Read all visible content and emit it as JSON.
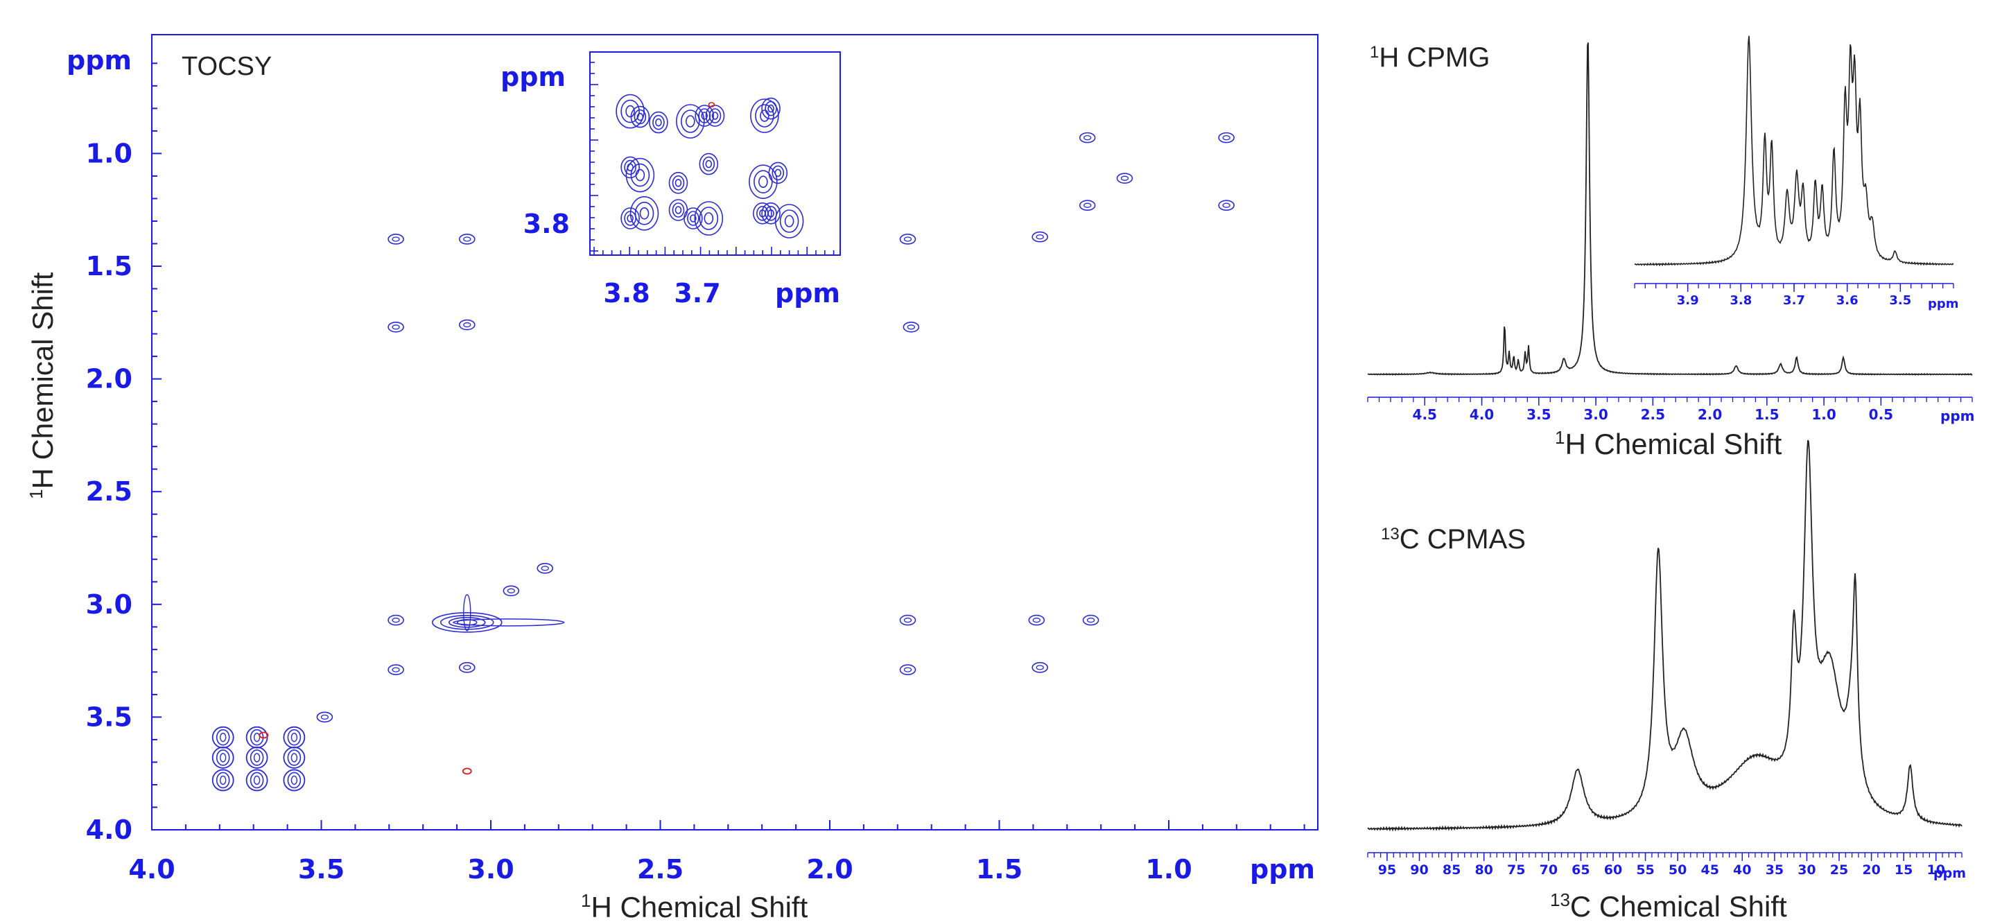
{
  "colors": {
    "axis": "#1a1ae6",
    "contour": "#2b2bd6",
    "contour_negative": "#e01818",
    "trace": "#222222"
  },
  "chart_data": [
    {
      "type": "contour",
      "title": "TOCSY",
      "xlabel_main": "H Chemical Shift",
      "xlabel_sup": "1",
      "ylabel_main": "H Chemical Shift",
      "ylabel_sup": "1",
      "unit": "ppm",
      "xlim": [
        4.0,
        0.55
      ],
      "ylim": [
        4.0,
        0.55
      ],
      "xticks": [
        "4.0",
        "3.5",
        "3.0",
        "2.5",
        "2.0",
        "1.5",
        "1.0"
      ],
      "yticks": [
        "1.0",
        "1.5",
        "2.0",
        "2.5",
        "3.0",
        "3.5",
        "4.0"
      ],
      "peaks": [
        [
          3.07,
          3.08,
          "s"
        ],
        [
          3.28,
          3.07,
          "p"
        ],
        [
          3.28,
          3.29,
          "p"
        ],
        [
          3.07,
          3.28,
          "p"
        ],
        [
          1.77,
          3.07,
          "p"
        ],
        [
          1.77,
          3.29,
          "p"
        ],
        [
          1.39,
          3.07,
          "p"
        ],
        [
          1.38,
          3.28,
          "p"
        ],
        [
          3.28,
          1.38,
          "p"
        ],
        [
          3.07,
          1.38,
          "p"
        ],
        [
          3.28,
          1.77,
          "p"
        ],
        [
          3.07,
          1.76,
          "p"
        ],
        [
          1.77,
          1.38,
          "p"
        ],
        [
          1.76,
          1.77,
          "p"
        ],
        [
          1.38,
          1.37,
          "p"
        ],
        [
          1.24,
          0.93,
          "p"
        ],
        [
          1.24,
          1.23,
          "p"
        ],
        [
          0.83,
          0.93,
          "p"
        ],
        [
          0.83,
          1.23,
          "p"
        ],
        [
          1.13,
          1.11,
          "p"
        ],
        [
          1.23,
          3.07,
          "p"
        ],
        [
          3.49,
          3.5,
          "p"
        ],
        [
          2.84,
          2.84,
          "p"
        ],
        [
          2.94,
          2.94,
          "p"
        ],
        [
          3.79,
          3.59,
          "c"
        ],
        [
          3.79,
          3.68,
          "c"
        ],
        [
          3.79,
          3.78,
          "c"
        ],
        [
          3.69,
          3.59,
          "c"
        ],
        [
          3.69,
          3.68,
          "c"
        ],
        [
          3.69,
          3.78,
          "c"
        ],
        [
          3.58,
          3.59,
          "c"
        ],
        [
          3.58,
          3.68,
          "c"
        ],
        [
          3.58,
          3.78,
          "c"
        ],
        [
          3.07,
          3.74,
          "n"
        ],
        [
          3.67,
          3.58,
          "n"
        ]
      ]
    },
    {
      "type": "contour-inset",
      "unit": "ppm",
      "xlim": [
        3.83,
        3.55
      ],
      "ylim": [
        3.83,
        3.55
      ],
      "xticks": [
        "3.8",
        "3.7"
      ],
      "yticks": [
        "3.8"
      ],
      "peaks": [
        [
          3.795,
          3.597
        ],
        [
          3.781,
          3.607
        ],
        [
          3.755,
          3.617
        ],
        [
          3.71,
          3.615
        ],
        [
          3.69,
          3.605
        ],
        [
          3.675,
          3.605
        ],
        [
          3.605,
          3.605
        ],
        [
          3.596,
          3.592
        ],
        [
          3.795,
          3.698
        ],
        [
          3.781,
          3.712
        ],
        [
          3.727,
          3.726
        ],
        [
          3.684,
          3.692
        ],
        [
          3.607,
          3.724
        ],
        [
          3.586,
          3.708
        ],
        [
          3.795,
          3.79
        ],
        [
          3.775,
          3.781
        ],
        [
          3.727,
          3.775
        ],
        [
          3.706,
          3.79
        ],
        [
          3.684,
          3.79
        ],
        [
          3.608,
          3.781
        ],
        [
          3.596,
          3.781
        ],
        [
          3.57,
          3.795
        ]
      ]
    },
    {
      "type": "line",
      "title_sup": "1",
      "title_main": "H CPMG",
      "xlabel_sup": "1",
      "xlabel_main": "H Chemical Shift",
      "unit": "ppm",
      "xlim": [
        5.0,
        -0.3
      ],
      "xticks": [
        "4.5",
        "4.0",
        "3.5",
        "3.0",
        "2.5",
        "2.0",
        "1.5",
        "1.0",
        "0.5"
      ],
      "peaks": [
        {
          "x": 3.07,
          "h": 1.0,
          "w": 0.018
        },
        {
          "x": 3.8,
          "h": 0.15,
          "w": 0.008
        },
        {
          "x": 3.76,
          "h": 0.06,
          "w": 0.008
        },
        {
          "x": 3.72,
          "h": 0.05,
          "w": 0.008
        },
        {
          "x": 3.68,
          "h": 0.04,
          "w": 0.008
        },
        {
          "x": 3.62,
          "h": 0.06,
          "w": 0.008
        },
        {
          "x": 3.59,
          "h": 0.08,
          "w": 0.008
        },
        {
          "x": 3.28,
          "h": 0.04,
          "w": 0.02
        },
        {
          "x": 1.77,
          "h": 0.025,
          "w": 0.02
        },
        {
          "x": 1.38,
          "h": 0.03,
          "w": 0.02
        },
        {
          "x": 1.24,
          "h": 0.05,
          "w": 0.015
        },
        {
          "x": 0.83,
          "h": 0.05,
          "w": 0.015
        },
        {
          "x": 4.45,
          "h": 0.005,
          "w": 0.05
        }
      ],
      "inset": {
        "xlim": [
          4.0,
          3.4
        ],
        "xticks": [
          "3.9",
          "3.8",
          "3.7",
          "3.6",
          "3.5"
        ],
        "peaks": [
          {
            "x": 3.785,
            "h": 1.0,
            "w": 0.006
          },
          {
            "x": 3.755,
            "h": 0.5,
            "w": 0.004
          },
          {
            "x": 3.742,
            "h": 0.48,
            "w": 0.004
          },
          {
            "x": 3.713,
            "h": 0.28,
            "w": 0.005
          },
          {
            "x": 3.695,
            "h": 0.35,
            "w": 0.005
          },
          {
            "x": 3.683,
            "h": 0.28,
            "w": 0.004
          },
          {
            "x": 3.66,
            "h": 0.32,
            "w": 0.004
          },
          {
            "x": 3.647,
            "h": 0.29,
            "w": 0.004
          },
          {
            "x": 3.625,
            "h": 0.46,
            "w": 0.004
          },
          {
            "x": 3.604,
            "h": 0.62,
            "w": 0.004
          },
          {
            "x": 3.594,
            "h": 0.72,
            "w": 0.004
          },
          {
            "x": 3.586,
            "h": 0.66,
            "w": 0.004
          },
          {
            "x": 3.576,
            "h": 0.55,
            "w": 0.004
          },
          {
            "x": 3.565,
            "h": 0.22,
            "w": 0.005
          },
          {
            "x": 3.553,
            "h": 0.14,
            "w": 0.005
          },
          {
            "x": 3.51,
            "h": 0.05,
            "w": 0.004
          }
        ]
      }
    },
    {
      "type": "line",
      "title_sup": "13",
      "title_main": "C CPMAS",
      "xlabel_sup": "13",
      "xlabel_main": "C Chemical Shift",
      "unit": "ppm",
      "xlim": [
        98,
        6
      ],
      "xticks": [
        "95",
        "90",
        "85",
        "80",
        "75",
        "70",
        "65",
        "60",
        "55",
        "50",
        "45",
        "40",
        "35",
        "30",
        "25",
        "20",
        "15",
        "10"
      ],
      "peaks": [
        {
          "x": 65.5,
          "h": 0.16,
          "w": 1.2
        },
        {
          "x": 53.0,
          "h": 0.75,
          "w": 0.8
        },
        {
          "x": 49.0,
          "h": 0.22,
          "w": 1.8
        },
        {
          "x": 38.0,
          "h": 0.18,
          "w": 5.5
        },
        {
          "x": 32.0,
          "h": 0.38,
          "w": 0.5
        },
        {
          "x": 29.8,
          "h": 0.92,
          "w": 0.8
        },
        {
          "x": 26.5,
          "h": 0.4,
          "w": 2.2
        },
        {
          "x": 23.0,
          "h": 0.2,
          "w": 1.0
        },
        {
          "x": 22.5,
          "h": 0.45,
          "w": 0.4
        },
        {
          "x": 14.0,
          "h": 0.16,
          "w": 0.5
        }
      ]
    }
  ]
}
